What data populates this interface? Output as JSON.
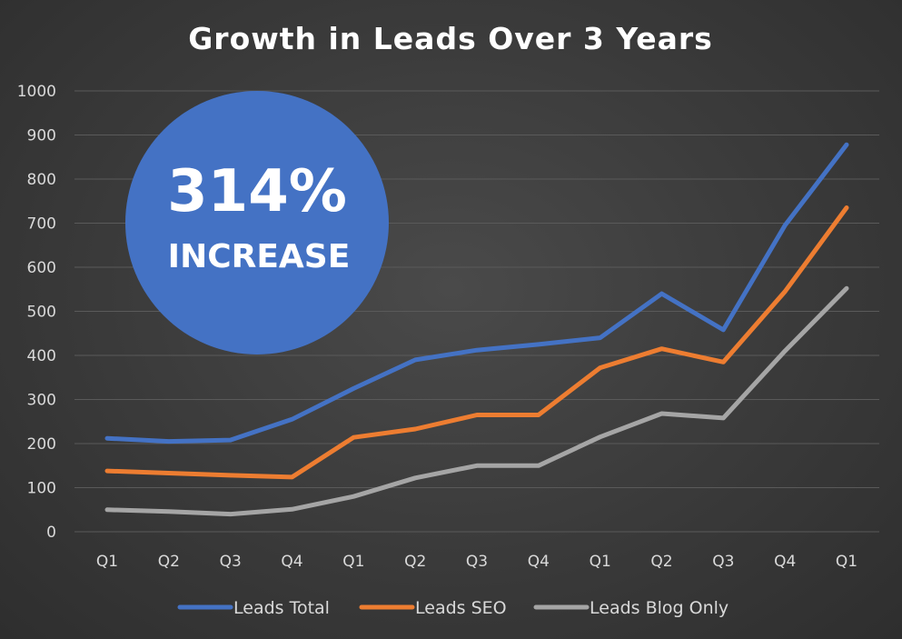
{
  "chart_data": {
    "type": "line",
    "title": "Growth in Leads Over 3 Years",
    "xlabel": "",
    "ylabel": "",
    "ylim": [
      0,
      1000
    ],
    "yticks": [
      "0",
      "100",
      "200",
      "300",
      "400",
      "500",
      "600",
      "700",
      "800",
      "900",
      "1000"
    ],
    "categories": [
      "Q1",
      "Q2",
      "Q3",
      "Q4",
      "Q1",
      "Q2",
      "Q3",
      "Q4",
      "Q1",
      "Q2",
      "Q3",
      "Q4",
      "Q1"
    ],
    "grid": true,
    "legend_position": "bottom",
    "series": [
      {
        "name": "Leads Total",
        "color": "#4472c4",
        "values": [
          212,
          205,
          208,
          255,
          325,
          390,
          412,
          425,
          440,
          540,
          458,
          695,
          878
        ]
      },
      {
        "name": "Leads SEO",
        "color": "#ed7d31",
        "values": [
          138,
          133,
          128,
          124,
          214,
          233,
          265,
          265,
          372,
          415,
          385,
          545,
          735
        ]
      },
      {
        "name": "Leads Blog Only",
        "color": "#a5a5a5",
        "values": [
          50,
          46,
          40,
          51,
          80,
          122,
          150,
          150,
          215,
          268,
          258,
          410,
          552
        ]
      }
    ],
    "annotation": {
      "big_text": "314%",
      "small_text": "INCREASE",
      "color": "#4472c4"
    }
  }
}
